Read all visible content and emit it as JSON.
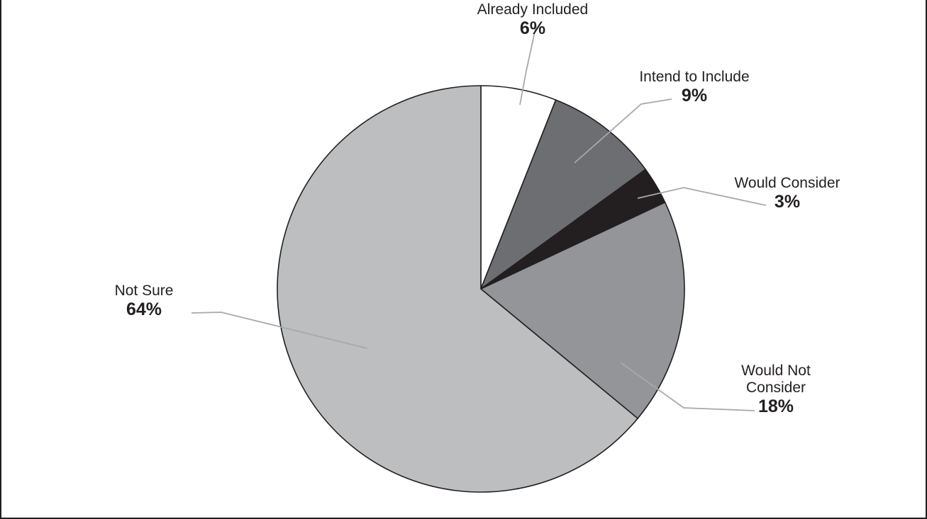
{
  "chart_data": {
    "type": "pie",
    "title": "",
    "start_angle_deg": 0,
    "direction": "clockwise",
    "slices": [
      {
        "label_lines": [
          "Already Included"
        ],
        "pct_label": "6%",
        "value": 6,
        "color": "#ffffff"
      },
      {
        "label_lines": [
          "Intend to Include"
        ],
        "pct_label": "9%",
        "value": 9,
        "color": "#6d6e71"
      },
      {
        "label_lines": [
          "Would Consider"
        ],
        "pct_label": "3%",
        "value": 3,
        "color": "#231f20"
      },
      {
        "label_lines": [
          "Would Not",
          "Consider"
        ],
        "pct_label": "18%",
        "value": 18,
        "color": "#939598"
      },
      {
        "label_lines": [
          "Not Sure"
        ],
        "pct_label": "64%",
        "value": 64,
        "color": "#bcbec0"
      }
    ]
  }
}
